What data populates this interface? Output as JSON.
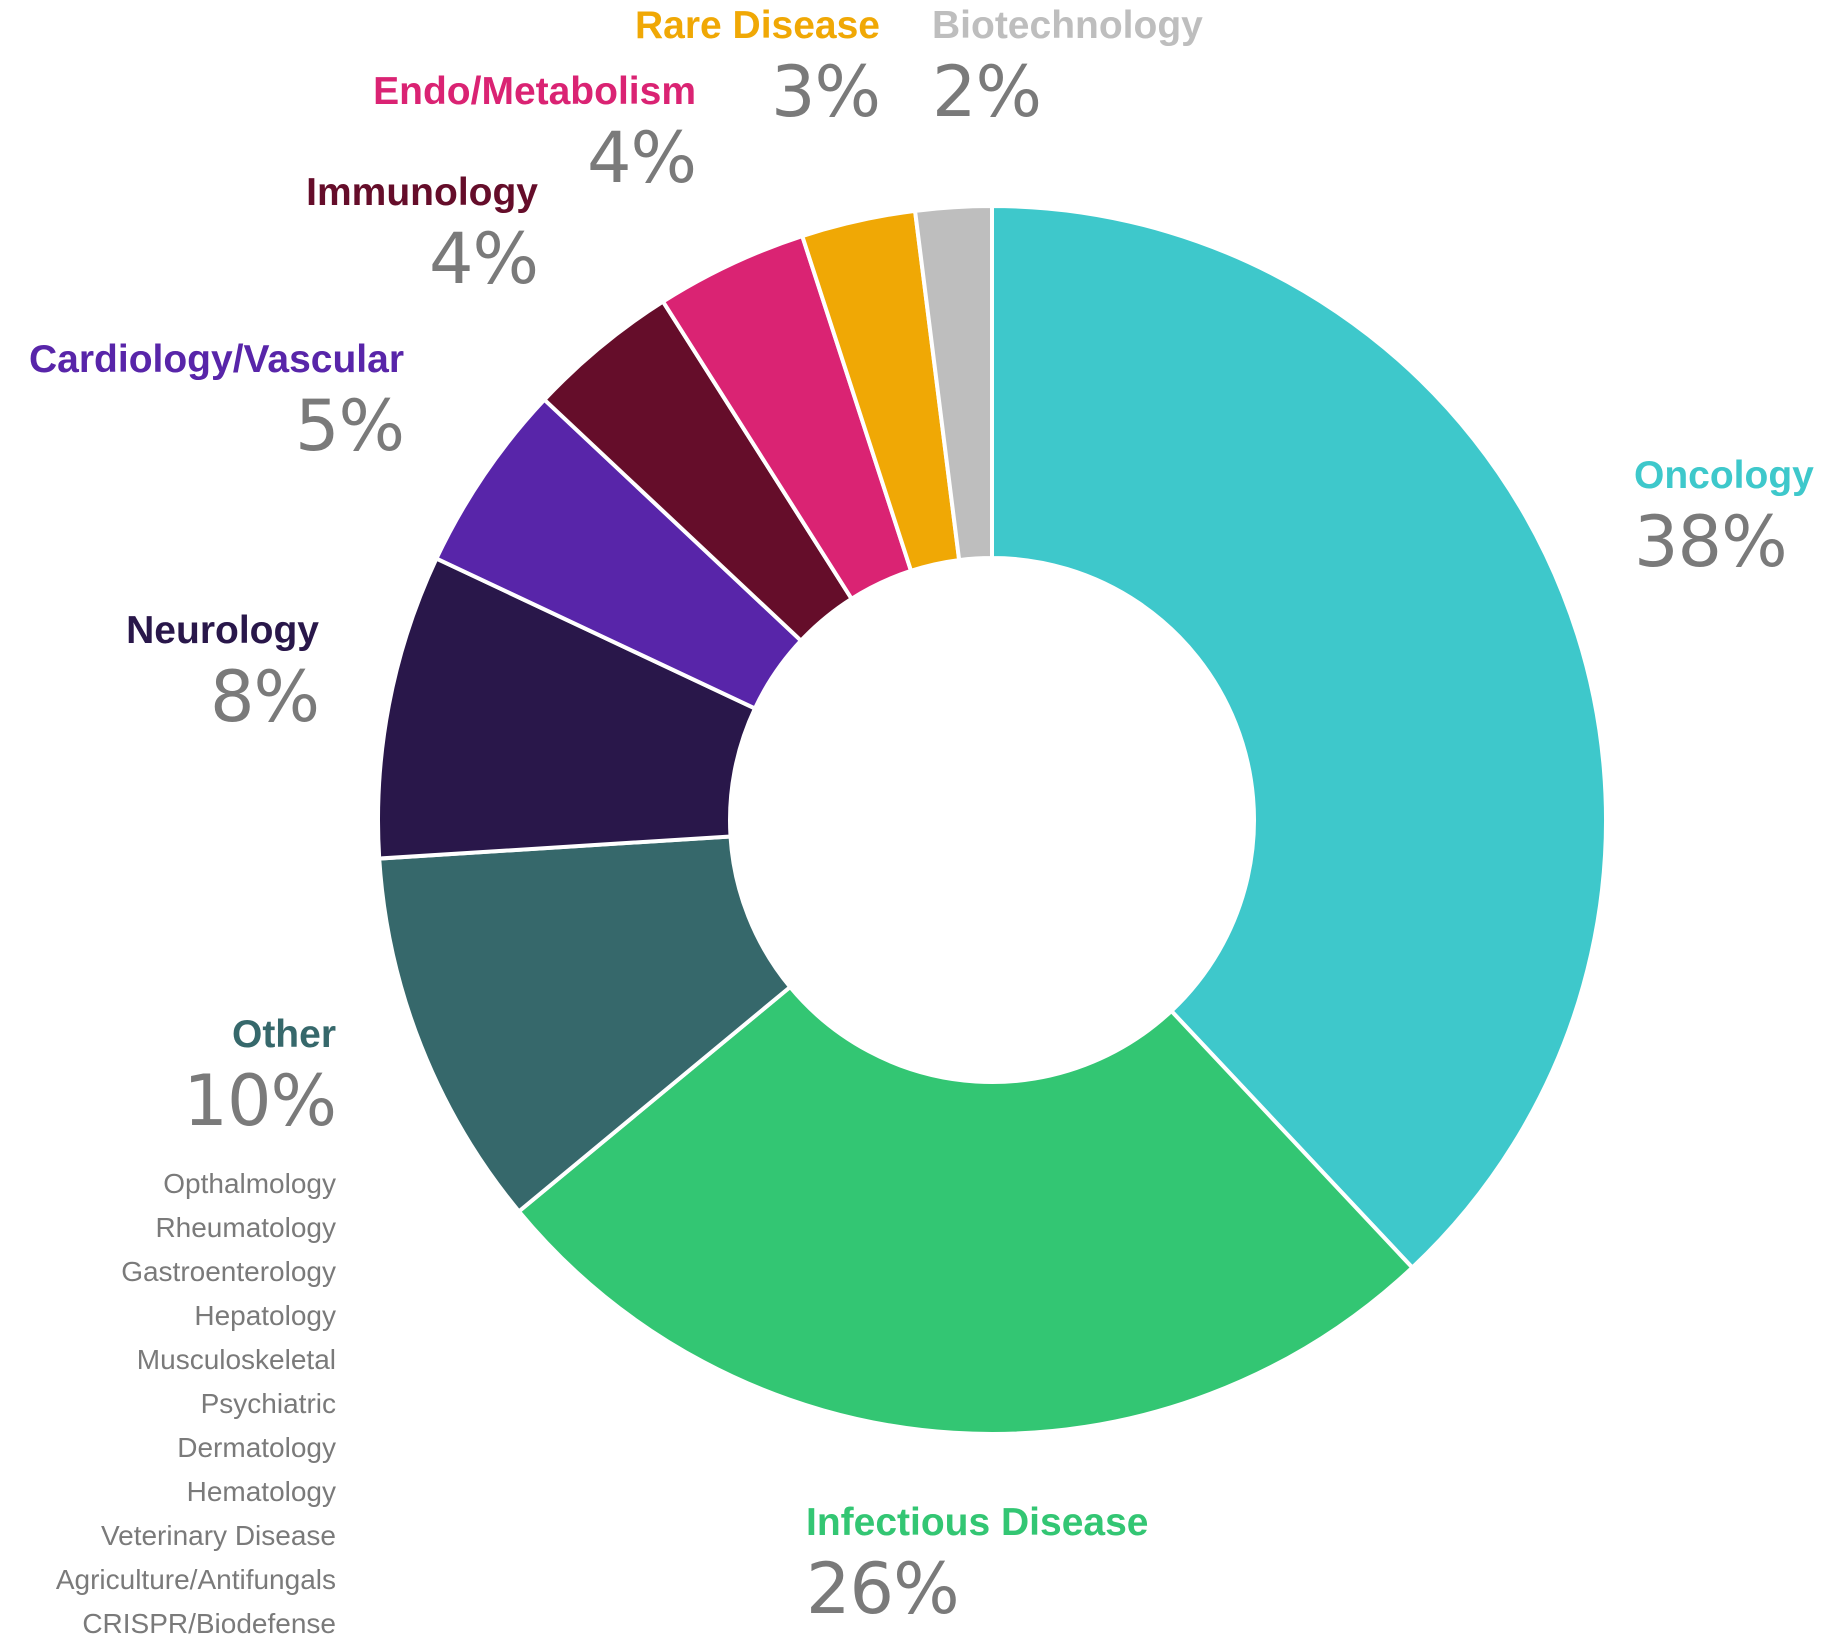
{
  "chart_data": {
    "type": "pie",
    "donut": true,
    "segments": [
      {
        "label": "Oncology",
        "value": 38,
        "percent_label": "38%",
        "color": "#3ec8cb"
      },
      {
        "label": "Infectious Disease",
        "value": 26,
        "percent_label": "26%",
        "color": "#33c673"
      },
      {
        "label": "Other",
        "value": 10,
        "percent_label": "10%",
        "color": "#36686b"
      },
      {
        "label": "Neurology",
        "value": 8,
        "percent_label": "8%",
        "color": "#29174a"
      },
      {
        "label": "Cardiology/Vascular",
        "value": 5,
        "percent_label": "5%",
        "color": "#5825a9"
      },
      {
        "label": "Immunology",
        "value": 4,
        "percent_label": "4%",
        "color": "#650d2a"
      },
      {
        "label": "Endo/Metabolism",
        "value": 4,
        "percent_label": "4%",
        "color": "#da2373"
      },
      {
        "label": "Rare Disease",
        "value": 3,
        "percent_label": "3%",
        "color": "#f0a805"
      },
      {
        "label": "Biotechnology",
        "value": 2,
        "percent_label": "2%",
        "color": "#bebebe"
      }
    ],
    "other_breakdown": [
      "Opthalmology",
      "Rheumatology",
      "Gastroenterology",
      "Hepatology",
      "Musculoskeletal",
      "Psychiatric",
      "Dermatology",
      "Hematology",
      "Veterinary Disease",
      "Agriculture/Antifungals",
      "CRISPR/Biodefense"
    ]
  }
}
